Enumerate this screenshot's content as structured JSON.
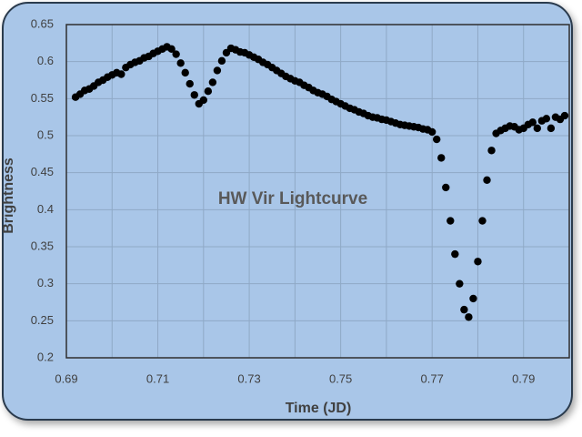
{
  "chart_data": {
    "type": "scatter",
    "title": "HW Vir Lightcurve",
    "x_label": "Time (JD)",
    "y_label": "Brightness",
    "color": "#000000",
    "grid": true,
    "xlim": [
      0.69,
      0.8
    ],
    "ylim": [
      0.2,
      0.65
    ],
    "xticks": [
      0.69,
      0.71,
      0.73,
      0.75,
      0.77,
      0.79
    ],
    "x_minor_ticks": [
      0.7,
      0.72,
      0.74,
      0.76,
      0.78
    ],
    "yticks": [
      0.2,
      0.25,
      0.3,
      0.35,
      0.4,
      0.45,
      0.5,
      0.55,
      0.6,
      0.65
    ],
    "x": [
      0.692,
      0.693,
      0.694,
      0.695,
      0.696,
      0.697,
      0.698,
      0.699,
      0.7,
      0.701,
      0.702,
      0.703,
      0.704,
      0.705,
      0.706,
      0.707,
      0.708,
      0.709,
      0.71,
      0.711,
      0.712,
      0.713,
      0.714,
      0.715,
      0.716,
      0.717,
      0.718,
      0.719,
      0.72,
      0.721,
      0.722,
      0.723,
      0.724,
      0.725,
      0.726,
      0.727,
      0.728,
      0.729,
      0.73,
      0.731,
      0.732,
      0.733,
      0.734,
      0.735,
      0.736,
      0.737,
      0.738,
      0.739,
      0.74,
      0.741,
      0.742,
      0.743,
      0.744,
      0.745,
      0.746,
      0.747,
      0.748,
      0.749,
      0.75,
      0.751,
      0.752,
      0.753,
      0.754,
      0.755,
      0.756,
      0.757,
      0.758,
      0.759,
      0.76,
      0.761,
      0.762,
      0.763,
      0.764,
      0.765,
      0.766,
      0.767,
      0.768,
      0.769,
      0.77,
      0.771,
      0.772,
      0.773,
      0.774,
      0.775,
      0.776,
      0.777,
      0.778,
      0.779,
      0.78,
      0.781,
      0.782,
      0.783,
      0.784,
      0.785,
      0.786,
      0.787,
      0.788,
      0.789,
      0.79,
      0.791,
      0.792,
      0.793,
      0.794,
      0.795,
      0.796,
      0.797,
      0.798,
      0.799
    ],
    "values": [
      0.552,
      0.556,
      0.561,
      0.563,
      0.567,
      0.572,
      0.575,
      0.579,
      0.582,
      0.585,
      0.583,
      0.592,
      0.596,
      0.599,
      0.601,
      0.605,
      0.607,
      0.611,
      0.614,
      0.617,
      0.62,
      0.617,
      0.61,
      0.598,
      0.585,
      0.57,
      0.555,
      0.543,
      0.548,
      0.56,
      0.572,
      0.588,
      0.601,
      0.612,
      0.618,
      0.616,
      0.613,
      0.612,
      0.609,
      0.606,
      0.603,
      0.599,
      0.596,
      0.592,
      0.588,
      0.584,
      0.58,
      0.577,
      0.574,
      0.572,
      0.568,
      0.565,
      0.561,
      0.558,
      0.556,
      0.553,
      0.549,
      0.546,
      0.543,
      0.54,
      0.537,
      0.535,
      0.532,
      0.53,
      0.527,
      0.525,
      0.524,
      0.522,
      0.521,
      0.519,
      0.517,
      0.515,
      0.514,
      0.513,
      0.512,
      0.511,
      0.509,
      0.508,
      0.505,
      0.495,
      0.47,
      0.43,
      0.385,
      0.34,
      0.3,
      0.265,
      0.255,
      0.28,
      0.33,
      0.385,
      0.44,
      0.48,
      0.503,
      0.507,
      0.51,
      0.513,
      0.512,
      0.508,
      0.51,
      0.515,
      0.518,
      0.51,
      0.52,
      0.523,
      0.51,
      0.525,
      0.522,
      0.527
    ]
  }
}
